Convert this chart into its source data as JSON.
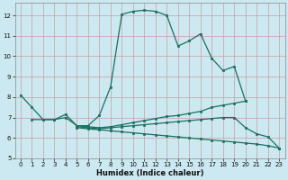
{
  "xlabel": "Humidex (Indice chaleur)",
  "bg_color": "#cce8f0",
  "grid_color": "#c8a0a0",
  "line_color": "#1a7060",
  "xlim": [
    -0.5,
    23.5
  ],
  "ylim": [
    5,
    12.6
  ],
  "yticks": [
    5,
    6,
    7,
    8,
    9,
    10,
    11,
    12
  ],
  "xticks": [
    0,
    1,
    2,
    3,
    4,
    5,
    6,
    7,
    8,
    9,
    10,
    11,
    12,
    13,
    14,
    15,
    16,
    17,
    18,
    19,
    20,
    21,
    22,
    23
  ],
  "series1_x": [
    0,
    1,
    2,
    3,
    4,
    5,
    6,
    7,
    8,
    9,
    10,
    11,
    12,
    13,
    14,
    15,
    16,
    17,
    18,
    19,
    20
  ],
  "series1_y": [
    8.1,
    7.5,
    6.9,
    6.9,
    7.15,
    6.6,
    6.6,
    7.1,
    8.5,
    12.05,
    12.2,
    12.25,
    12.2,
    12.0,
    10.5,
    10.75,
    11.1,
    9.9,
    9.3,
    9.5,
    7.8
  ],
  "series2_x": [
    1,
    2,
    3,
    4,
    5,
    6,
    7,
    8,
    9,
    10,
    11,
    12,
    13,
    14,
    15,
    16,
    17,
    18,
    19,
    20
  ],
  "series2_y": [
    6.9,
    6.9,
    6.9,
    7.0,
    6.6,
    6.55,
    6.5,
    6.55,
    6.65,
    6.75,
    6.85,
    6.95,
    7.05,
    7.1,
    7.2,
    7.3,
    7.5,
    7.6,
    7.7,
    7.8
  ],
  "series3_x": [
    5,
    6,
    7,
    8,
    9,
    10,
    11,
    12,
    13,
    14,
    15,
    16,
    17,
    18,
    19,
    20,
    21,
    22,
    23
  ],
  "series3_y": [
    6.55,
    6.5,
    6.45,
    6.5,
    6.55,
    6.6,
    6.65,
    6.7,
    6.75,
    6.8,
    6.85,
    6.9,
    6.95,
    7.0,
    7.0,
    6.5,
    6.2,
    6.05,
    5.5
  ],
  "series4_x": [
    5,
    6,
    7,
    8,
    9,
    10,
    11,
    12,
    13,
    14,
    15,
    16,
    17,
    18,
    19,
    20,
    21,
    22,
    23
  ],
  "series4_y": [
    6.5,
    6.45,
    6.4,
    6.35,
    6.3,
    6.25,
    6.2,
    6.15,
    6.1,
    6.05,
    6.0,
    5.95,
    5.9,
    5.85,
    5.8,
    5.75,
    5.7,
    5.62,
    5.5
  ]
}
